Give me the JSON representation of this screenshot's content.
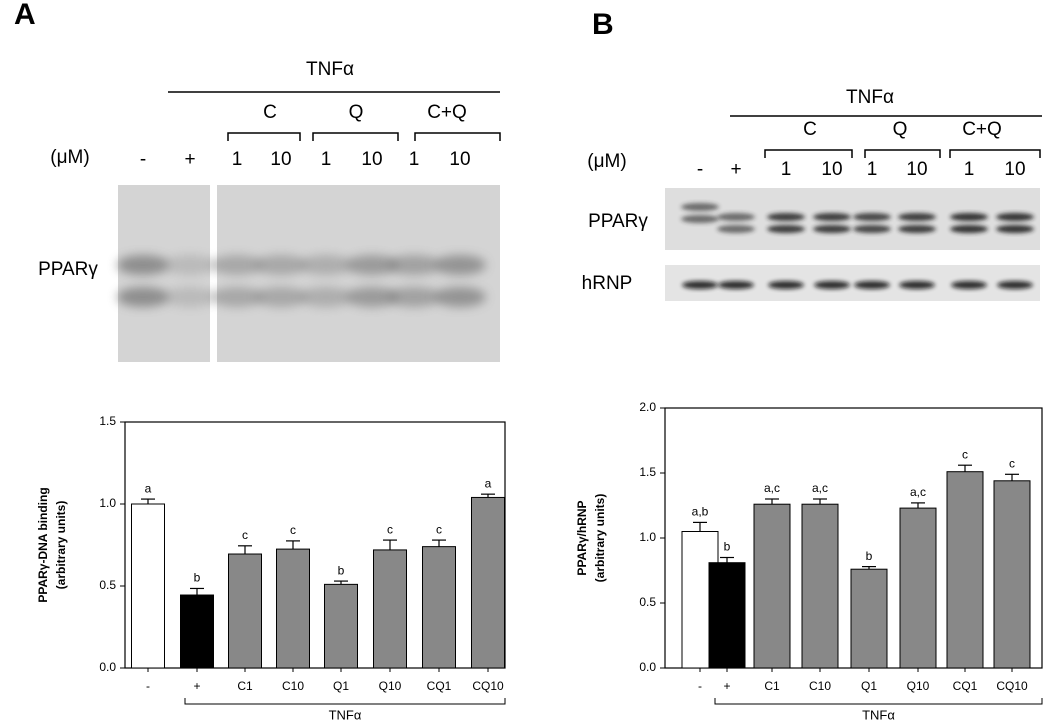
{
  "panel_labels": [
    "A",
    "B"
  ],
  "blot_a": {
    "treatment": "TNFα",
    "groups": [
      "C",
      "Q",
      "C+Q"
    ],
    "unit": "(μM)",
    "lanes": [
      "-",
      "+",
      "1",
      "10",
      "1",
      "10",
      "1",
      "10"
    ],
    "rows": [
      "PPARγ"
    ]
  },
  "blot_b": {
    "treatment": "TNFα",
    "groups": [
      "C",
      "Q",
      "C+Q"
    ],
    "unit": "(μM)",
    "lanes": [
      "-",
      "+",
      "1",
      "10",
      "1",
      "10",
      "1",
      "10"
    ],
    "rows": [
      "PPARγ",
      "hRNP"
    ]
  },
  "chart_data": [
    {
      "type": "bar",
      "ylabel": [
        "PPARγ-DNA binding",
        "(arbitrary units)"
      ],
      "xbracket_label": "TNFα",
      "categories": [
        "-",
        "+",
        "C1",
        "C10",
        "Q1",
        "Q10",
        "CQ1",
        "CQ10"
      ],
      "values": [
        1.0,
        0.445,
        0.695,
        0.725,
        0.51,
        0.72,
        0.74,
        1.04
      ],
      "errors": [
        0.03,
        0.04,
        0.05,
        0.05,
        0.02,
        0.06,
        0.04,
        0.02
      ],
      "annotations": [
        "a",
        "b",
        "c",
        "c",
        "b",
        "c",
        "c",
        "a"
      ],
      "colors": [
        "#ffffff",
        "#000000",
        "#888888",
        "#888888",
        "#888888",
        "#888888",
        "#888888",
        "#888888"
      ],
      "ylim": [
        0,
        1.5
      ],
      "yticks": [
        {
          "value": 0,
          "label": "0.0"
        },
        {
          "value": 0.5,
          "label": "0.5"
        },
        {
          "value": 1,
          "label": "1.0"
        },
        1.5
      ]
    },
    {
      "type": "bar",
      "ylabel": [
        "PPARγ/hRNP",
        "(arbitrary units)"
      ],
      "xbracket_label": "TNFα",
      "categories": [
        "-",
        "+",
        "C1",
        "C10",
        "Q1",
        "Q10",
        "CQ1",
        "CQ10"
      ],
      "values": [
        1.05,
        0.81,
        1.26,
        1.26,
        0.76,
        1.23,
        1.51,
        1.44
      ],
      "errors": [
        0.07,
        0.04,
        0.04,
        0.04,
        0.02,
        0.04,
        0.05,
        0.05
      ],
      "annotations": [
        "a,b",
        "b",
        "a,c",
        "a,c",
        "b",
        "a,c",
        "c",
        "c"
      ],
      "colors": [
        "#ffffff",
        "#000000",
        "#888888",
        "#888888",
        "#888888",
        "#888888",
        "#888888",
        "#888888"
      ],
      "ylim": [
        0,
        2
      ],
      "yticks": [
        {
          "value": 0,
          "label": "0.0"
        },
        {
          "value": 0.5,
          "label": "0.5"
        },
        {
          "value": 1,
          "label": "1.0"
        },
        1.5,
        {
          "value": 2,
          "label": "2.0"
        }
      ]
    }
  ]
}
